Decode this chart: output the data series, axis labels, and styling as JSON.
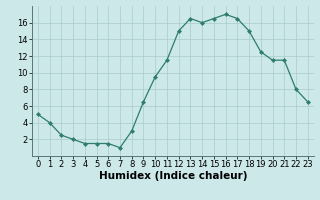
{
  "x": [
    0,
    1,
    2,
    3,
    4,
    5,
    6,
    7,
    8,
    9,
    10,
    11,
    12,
    13,
    14,
    15,
    16,
    17,
    18,
    19,
    20,
    21,
    22,
    23
  ],
  "y": [
    5,
    4,
    2.5,
    2,
    1.5,
    1.5,
    1.5,
    1,
    3,
    6.5,
    9.5,
    11.5,
    15,
    16.5,
    16,
    16.5,
    17,
    16.5,
    15,
    12.5,
    11.5,
    11.5,
    8,
    6.5
  ],
  "line_color": "#2e7d6e",
  "marker": "D",
  "marker_size": 2,
  "bg_color": "#cce8e8",
  "grid_color": "#aacccc",
  "xlabel": "Humidex (Indice chaleur)",
  "ylim": [
    0,
    18
  ],
  "xlim": [
    -0.5,
    23.5
  ],
  "yticks": [
    2,
    4,
    6,
    8,
    10,
    12,
    14,
    16
  ],
  "xticks": [
    0,
    1,
    2,
    3,
    4,
    5,
    6,
    7,
    8,
    9,
    10,
    11,
    12,
    13,
    14,
    15,
    16,
    17,
    18,
    19,
    20,
    21,
    22,
    23
  ],
  "tick_fontsize": 6,
  "xlabel_fontsize": 7.5
}
